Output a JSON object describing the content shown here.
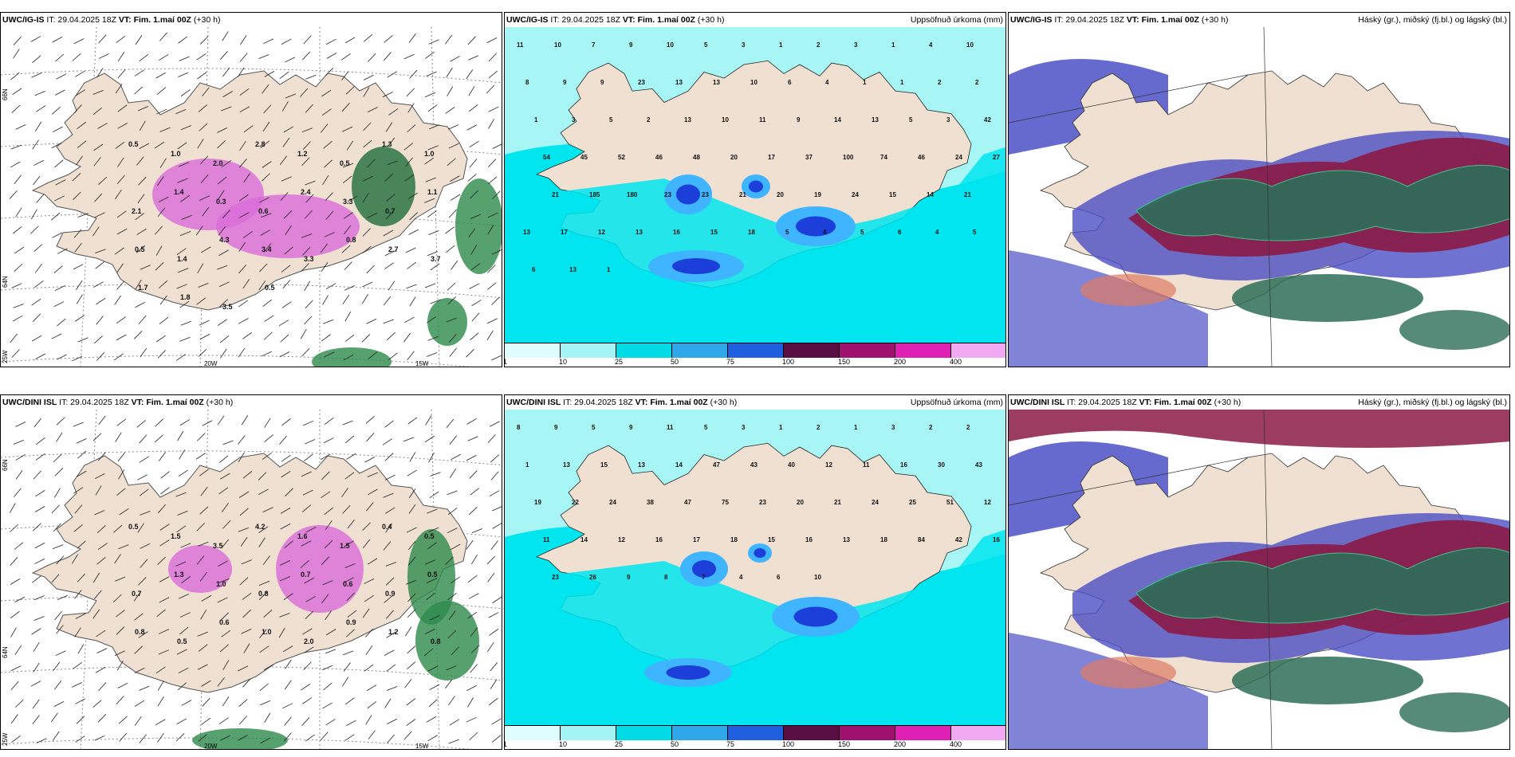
{
  "colors": {
    "land": "#efe0d2",
    "sea_bg": "#ffffff",
    "precip_light": "#a8f5f5",
    "precip_mid": "#00e5ee",
    "precip_blue": "#3fb5ff",
    "precip_dark": "#1c3fd9",
    "snow_magenta": "#d96bd9",
    "rain_green": "#2d8a4b",
    "cloud_high": "#2d6e58",
    "cloud_mid": "#8a1a44",
    "cloud_low": "#4b4fc4",
    "cloud_fringe": "#e07a63"
  },
  "colorbar": {
    "labels": [
      "1",
      "10",
      "25",
      "50",
      "75",
      "100",
      "150",
      "200",
      "400"
    ],
    "colors": [
      "#dffcff",
      "#a5f4f5",
      "#00dbe8",
      "#2ea6ea",
      "#1f5fe0",
      "#5a0f44",
      "#a0106e",
      "#e01fb5",
      "#f3a8f3"
    ]
  },
  "axis_labels": {
    "lon_left": "20W",
    "lon_right": "15W",
    "lat_top": "66N",
    "lat_mid": "64N",
    "lat_low": "25W"
  },
  "rows": [
    {
      "model": "UWC/IG-IS",
      "it": "IT: 29.04.2025 18Z",
      "vt_label": "VT:",
      "vt": "Fim. 1.maí 00Z",
      "lead": "(+30 h)",
      "panel_titles": {
        "precip": "Uppsöfnuð úrkoma (mm)",
        "cloud": "Háský (gr.), miðský (fj.bl.) og lágský (bl.)"
      },
      "precip_labels": [
        {
          "v": "11"
        },
        {
          "v": "10"
        },
        {
          "v": "7"
        },
        {
          "v": "9"
        },
        {
          "v": "10"
        },
        {
          "v": "5"
        },
        {
          "v": "3"
        },
        {
          "v": "1"
        },
        {
          "v": "2"
        },
        {
          "v": "3"
        },
        {
          "v": "1"
        },
        {
          "v": "4"
        },
        {
          "v": "10"
        },
        {
          "v": "8"
        },
        {
          "v": "9"
        },
        {
          "v": "9"
        },
        {
          "v": "23"
        },
        {
          "v": "13"
        },
        {
          "v": "13"
        },
        {
          "v": "10"
        },
        {
          "v": "6"
        },
        {
          "v": "4"
        },
        {
          "v": "1"
        },
        {
          "v": "1"
        },
        {
          "v": "2"
        },
        {
          "v": "2"
        },
        {
          "v": "1"
        },
        {
          "v": "3"
        },
        {
          "v": "5"
        },
        {
          "v": "2"
        },
        {
          "v": "13"
        },
        {
          "v": "10"
        },
        {
          "v": "11"
        },
        {
          "v": "9"
        },
        {
          "v": "14"
        },
        {
          "v": "13"
        },
        {
          "v": "5"
        },
        {
          "v": "3"
        },
        {
          "v": "42"
        },
        {
          "v": "54"
        },
        {
          "v": "45"
        },
        {
          "v": "52"
        },
        {
          "v": "46"
        },
        {
          "v": "48"
        },
        {
          "v": "20"
        },
        {
          "v": "17"
        },
        {
          "v": "37"
        },
        {
          "v": "100"
        },
        {
          "v": "74"
        },
        {
          "v": "46"
        },
        {
          "v": "24"
        },
        {
          "v": "27"
        },
        {
          "v": "21"
        },
        {
          "v": "185"
        },
        {
          "v": "180"
        },
        {
          "v": "23"
        },
        {
          "v": "23"
        },
        {
          "v": "21"
        },
        {
          "v": "20"
        },
        {
          "v": "19"
        },
        {
          "v": "24"
        },
        {
          "v": "15"
        },
        {
          "v": "14"
        },
        {
          "v": "21"
        },
        {
          "v": "13"
        },
        {
          "v": "17"
        },
        {
          "v": "12"
        },
        {
          "v": "13"
        },
        {
          "v": "16"
        },
        {
          "v": "15"
        },
        {
          "v": "18"
        },
        {
          "v": "5"
        },
        {
          "v": "4"
        },
        {
          "v": "5"
        },
        {
          "v": "6"
        },
        {
          "v": "4"
        },
        {
          "v": "5"
        },
        {
          "v": "6"
        },
        {
          "v": "13"
        },
        {
          "v": "1"
        }
      ],
      "wind_labels": [
        {
          "v": "0.5"
        },
        {
          "v": "1.0"
        },
        {
          "v": "2.0"
        },
        {
          "v": "2.8"
        },
        {
          "v": "1.2"
        },
        {
          "v": "0.5"
        },
        {
          "v": "1.3"
        },
        {
          "v": "1.0"
        },
        {
          "v": "2.1"
        },
        {
          "v": "1.4"
        },
        {
          "v": "0.3"
        },
        {
          "v": "0.6"
        },
        {
          "v": "2.4"
        },
        {
          "v": "3.3"
        },
        {
          "v": "0.7"
        },
        {
          "v": "1.1"
        },
        {
          "v": "0.5"
        },
        {
          "v": "1.4"
        },
        {
          "v": "4.3"
        },
        {
          "v": "3.4"
        },
        {
          "v": "3.3"
        },
        {
          "v": "0.8"
        },
        {
          "v": "2.7"
        },
        {
          "v": "3.7"
        },
        {
          "v": "1.7"
        },
        {
          "v": "1.8"
        },
        {
          "v": "3.5"
        },
        {
          "v": "0.5"
        }
      ]
    },
    {
      "model": "UWC/DINI ISL",
      "it": "IT: 29.04.2025 18Z",
      "vt_label": "VT:",
      "vt": "Fim. 1.maí 00Z",
      "lead": "(+30 h)",
      "panel_titles": {
        "precip": "Uppsöfnuð úrkoma (mm)",
        "cloud": "Háský (gr.), miðský (fj.bl.) og lágský (bl.)"
      },
      "precip_labels": [
        {
          "v": "8"
        },
        {
          "v": "9"
        },
        {
          "v": "5"
        },
        {
          "v": "9"
        },
        {
          "v": "11"
        },
        {
          "v": "5"
        },
        {
          "v": "3"
        },
        {
          "v": "1"
        },
        {
          "v": "2"
        },
        {
          "v": "1"
        },
        {
          "v": "3"
        },
        {
          "v": "2"
        },
        {
          "v": "2"
        },
        {
          "v": "1"
        },
        {
          "v": "13"
        },
        {
          "v": "15"
        },
        {
          "v": "13"
        },
        {
          "v": "14"
        },
        {
          "v": "47"
        },
        {
          "v": "43"
        },
        {
          "v": "40"
        },
        {
          "v": "12"
        },
        {
          "v": "11"
        },
        {
          "v": "16"
        },
        {
          "v": "30"
        },
        {
          "v": "43"
        },
        {
          "v": "19"
        },
        {
          "v": "22"
        },
        {
          "v": "24"
        },
        {
          "v": "38"
        },
        {
          "v": "47"
        },
        {
          "v": "75"
        },
        {
          "v": "23"
        },
        {
          "v": "20"
        },
        {
          "v": "21"
        },
        {
          "v": "24"
        },
        {
          "v": "25"
        },
        {
          "v": "51"
        },
        {
          "v": "12"
        },
        {
          "v": "11"
        },
        {
          "v": "14"
        },
        {
          "v": "12"
        },
        {
          "v": "16"
        },
        {
          "v": "17"
        },
        {
          "v": "18"
        },
        {
          "v": "15"
        },
        {
          "v": "16"
        },
        {
          "v": "13"
        },
        {
          "v": "18"
        },
        {
          "v": "84"
        },
        {
          "v": "42"
        },
        {
          "v": "16"
        },
        {
          "v": "23"
        },
        {
          "v": "26"
        },
        {
          "v": "9"
        },
        {
          "v": "8"
        },
        {
          "v": "7"
        },
        {
          "v": "4"
        },
        {
          "v": "6"
        },
        {
          "v": "10"
        }
      ],
      "wind_labels": [
        {
          "v": "0.5"
        },
        {
          "v": "1.5"
        },
        {
          "v": "3.5"
        },
        {
          "v": "4.2"
        },
        {
          "v": "1.6"
        },
        {
          "v": "1.5"
        },
        {
          "v": "0.4"
        },
        {
          "v": "0.5"
        },
        {
          "v": "0.7"
        },
        {
          "v": "1.3"
        },
        {
          "v": "1.0"
        },
        {
          "v": "0.8"
        },
        {
          "v": "0.7"
        },
        {
          "v": "0.6"
        },
        {
          "v": "0.9"
        },
        {
          "v": "0.5"
        },
        {
          "v": "0.8"
        },
        {
          "v": "0.5"
        },
        {
          "v": "0.6"
        },
        {
          "v": "1.0"
        },
        {
          "v": "2.0"
        },
        {
          "v": "0.9"
        },
        {
          "v": "1.2"
        },
        {
          "v": "0.8"
        }
      ]
    }
  ]
}
